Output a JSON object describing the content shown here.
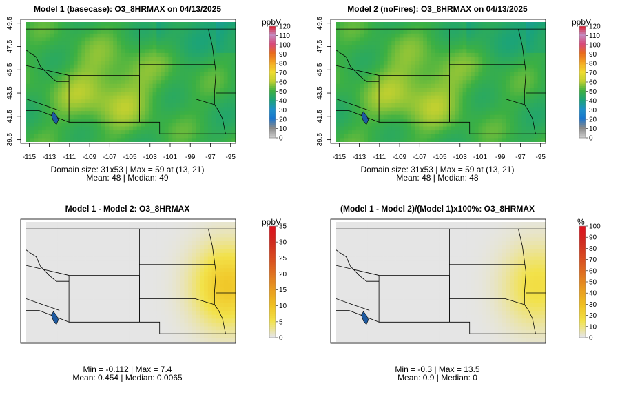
{
  "chart_data": [
    {
      "type": "heatmap",
      "title": "Model 1 (basecase): O3_8HRMAX on 04/13/2025",
      "x_ticks": [
        "-115",
        "-113",
        "-111",
        "-109",
        "-107",
        "-105",
        "-103",
        "-101",
        "-99",
        "-97",
        "-95"
      ],
      "y_ticks": [
        "39.5",
        "41.5",
        "43.5",
        "45.5",
        "47.5",
        "49.5"
      ],
      "colorbar": {
        "unit": "ppbV",
        "ticks": [
          "0",
          "10",
          "20",
          "30",
          "40",
          "50",
          "60",
          "70",
          "80",
          "90",
          "100",
          "110",
          "120"
        ],
        "min": 0,
        "max": 120
      },
      "field": {
        "base": 48,
        "peak": 59,
        "peak_cell": [
          13,
          21
        ],
        "scheme": "abs"
      },
      "stats": {
        "line1": "Domain size: 31x53 | Max = 59 at (13, 21)",
        "line2": "Mean: 48 |  Median: 49"
      }
    },
    {
      "type": "heatmap",
      "title": "Model 2 (noFires): O3_8HRMAX on 04/13/2025",
      "x_ticks": [
        "-115",
        "-113",
        "-111",
        "-109",
        "-107",
        "-105",
        "-103",
        "-101",
        "-99",
        "-97",
        "-95"
      ],
      "y_ticks": [
        "39.5",
        "41.5",
        "43.5",
        "45.5",
        "47.5",
        "49.5"
      ],
      "colorbar": {
        "unit": "ppbV",
        "ticks": [
          "0",
          "10",
          "20",
          "30",
          "40",
          "50",
          "60",
          "70",
          "80",
          "90",
          "100",
          "110",
          "120"
        ],
        "min": 0,
        "max": 120
      },
      "field": {
        "base": 48,
        "peak": 59,
        "peak_cell": [
          13,
          21
        ],
        "scheme": "abs"
      },
      "stats": {
        "line1": "Domain size: 31x53 | Max = 59 at (13, 21)",
        "line2": "Mean: 48 |  Median: 48"
      }
    },
    {
      "type": "heatmap",
      "title": "Model 1 - Model 2: O3_8HRMAX",
      "x_ticks": [],
      "y_ticks": [],
      "colorbar": {
        "unit": "ppbV",
        "ticks": [
          "0",
          "5",
          "10",
          "15",
          "20",
          "25",
          "30",
          "35"
        ],
        "min": 0,
        "max": 35
      },
      "field": {
        "min": -0.112,
        "max": 7.4,
        "scheme": "diff"
      },
      "stats": {
        "line1": "Min = -0.112 | Max = 7.4",
        "line2": "Mean: 0.454 |  Median: 0.0065"
      }
    },
    {
      "type": "heatmap",
      "title": "(Model 1 - Model 2)/(Model 1)x100%: O3_8HRMAX",
      "x_ticks": [],
      "y_ticks": [],
      "colorbar": {
        "unit": "%",
        "ticks": [
          "0",
          "10",
          "20",
          "30",
          "40",
          "50",
          "60",
          "70",
          "80",
          "90",
          "100"
        ],
        "min": 0,
        "max": 100
      },
      "field": {
        "min": -0.3,
        "max": 13.5,
        "scheme": "diff"
      },
      "stats": {
        "line1": "Min = -0.3 | Max = 13.5",
        "line2": "Mean: 0.9 |  Median: 0"
      }
    }
  ],
  "colors": {
    "abs_scale": [
      "#c8c8c8",
      "#8a8a8a",
      "#1874cd",
      "#1e90c8",
      "#1aa37a",
      "#3cb043",
      "#c0d030",
      "#f0dc30",
      "#f5a623",
      "#e86a1a",
      "#d94a7a",
      "#c58bc0",
      "#e0101e"
    ],
    "diff_scale": [
      "#e5e5e5",
      "#f2e24a",
      "#f0c020",
      "#e89a20",
      "#df7020",
      "#d84a20",
      "#d02a20",
      "#e0101e"
    ],
    "panel_bg": "#e5e5e5",
    "line": "#000000"
  }
}
